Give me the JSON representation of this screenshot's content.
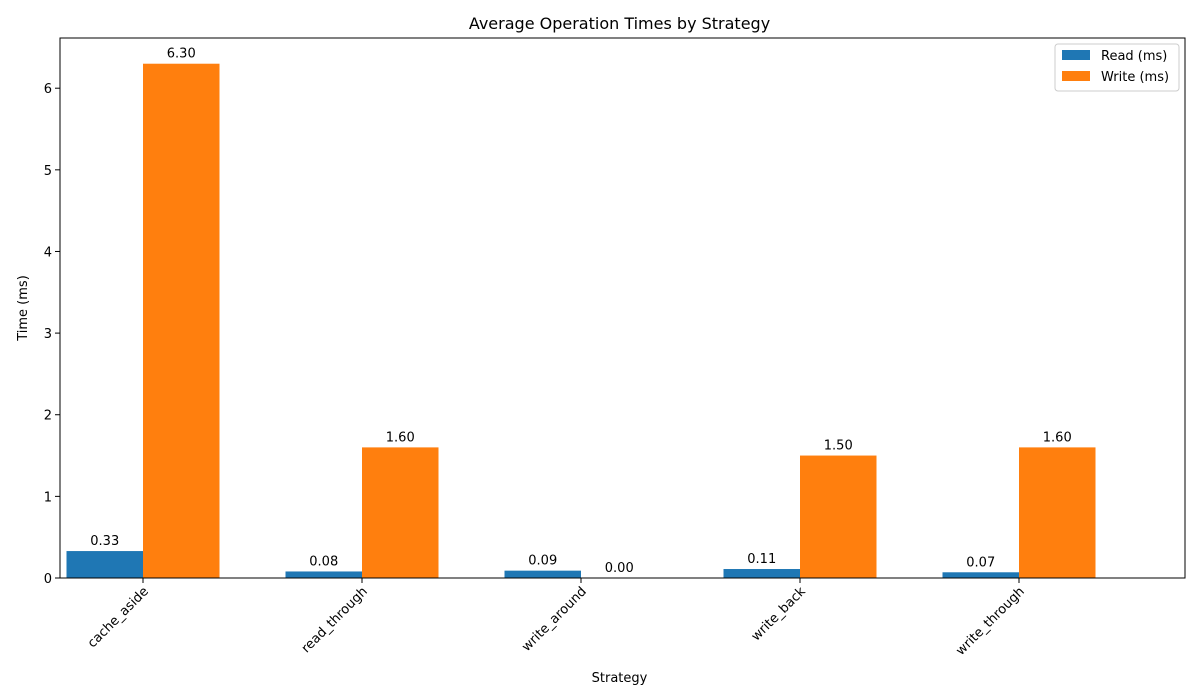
{
  "chart_data": {
    "type": "bar",
    "title": "Average Operation Times by Strategy",
    "xlabel": "Strategy",
    "ylabel": "Time (ms)",
    "categories": [
      "cache_aside",
      "read_through",
      "write_around",
      "write_back",
      "write_through"
    ],
    "series": [
      {
        "name": "Read (ms)",
        "color": "#1f77b4",
        "values": [
          0.33,
          0.08,
          0.09,
          0.11,
          0.07
        ],
        "labels": [
          "0.33",
          "0.08",
          "0.09",
          "0.11",
          "0.07"
        ]
      },
      {
        "name": "Write (ms)",
        "color": "#ff7f0e",
        "values": [
          6.3,
          1.6,
          0.0,
          1.5,
          1.6
        ],
        "labels": [
          "6.30",
          "1.60",
          "0.00",
          "1.50",
          "1.60"
        ]
      }
    ],
    "ylim": [
      0,
      6.615
    ],
    "yticks": [
      0,
      1,
      2,
      3,
      4,
      5,
      6
    ],
    "xtick_rotation": 45,
    "grid": false,
    "legend_position": "top-right"
  }
}
